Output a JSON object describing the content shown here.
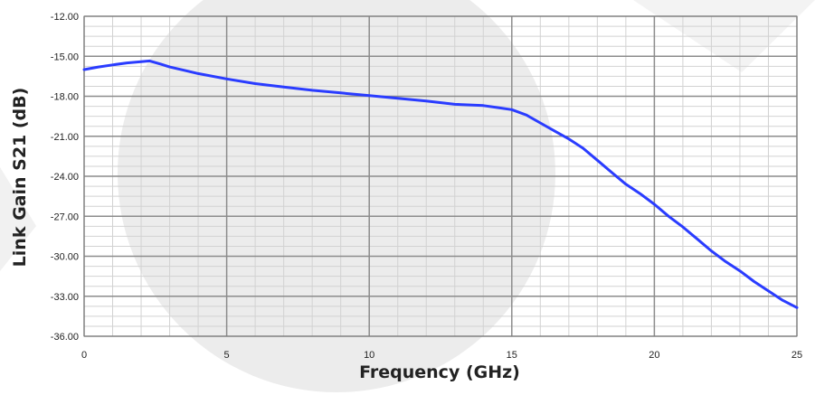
{
  "chart_data": {
    "type": "line",
    "title": "",
    "xlabel": "Frequency (GHz)",
    "ylabel": "Link Gain S21 (dB)",
    "xlim": [
      0,
      25
    ],
    "ylim": [
      -36,
      -12
    ],
    "x_ticks": [
      0,
      5,
      10,
      15,
      20,
      25
    ],
    "x_tick_labels": [
      "0",
      "5",
      "10",
      "15",
      "20",
      "25"
    ],
    "y_ticks": [
      -12,
      -15,
      -18,
      -21,
      -24,
      -27,
      -30,
      -33,
      -36
    ],
    "y_tick_labels": [
      "-12.00",
      "-15.00",
      "-18.00",
      "-21.00",
      "-24.00",
      "-27.00",
      "-30.00",
      "-33.00",
      "-36.00"
    ],
    "grid": true,
    "minor_grid": true,
    "legend": "none",
    "colors": {
      "series": "#2a3cff",
      "major_grid": "#8c8c8c",
      "minor_grid": "#d2d2d2",
      "watermark": "#ececec"
    },
    "series": [
      {
        "x": [
          0,
          0.5,
          1,
          1.5,
          2,
          2.3,
          2.7,
          3,
          3.5,
          4,
          5,
          6,
          7,
          8,
          9,
          10,
          11,
          12,
          13,
          14,
          14.5,
          15,
          15.5,
          16,
          16.5,
          17,
          17.5,
          18,
          18.5,
          19,
          19.5,
          20,
          20.5,
          21,
          21.5,
          22,
          22.5,
          23,
          23.5,
          24,
          24.5,
          25
        ],
        "y": [
          -16.0,
          -15.8,
          -15.65,
          -15.5,
          -15.4,
          -15.35,
          -15.6,
          -15.8,
          -16.05,
          -16.3,
          -16.7,
          -17.05,
          -17.3,
          -17.55,
          -17.75,
          -17.95,
          -18.15,
          -18.35,
          -18.6,
          -18.7,
          -18.85,
          -19.0,
          -19.4,
          -20.0,
          -20.6,
          -21.2,
          -21.9,
          -22.8,
          -23.7,
          -24.6,
          -25.3,
          -26.1,
          -27.0,
          -27.8,
          -28.7,
          -29.6,
          -30.4,
          -31.1,
          -31.9,
          -32.6,
          -33.3,
          -33.85
        ]
      }
    ]
  }
}
